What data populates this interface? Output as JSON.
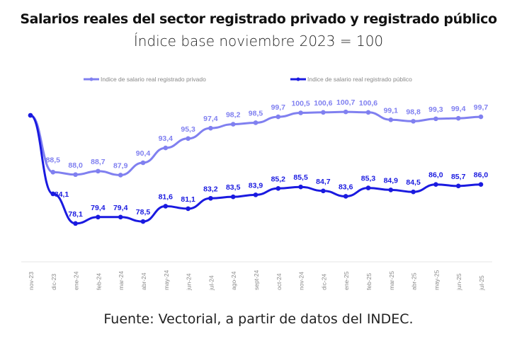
{
  "title": "Salarios reales del sector registrado privado y registrado público",
  "subtitle": "Índice base noviembre 2023 = 100",
  "source": "Fuente: Vectorial, a partir de datos del INDEC.",
  "chart_data": {
    "type": "line",
    "categories": [
      "nov-23",
      "dic-23",
      "ene-24",
      "feb-24",
      "mar-24",
      "abr-24",
      "may-24",
      "jun-24",
      "jul-24",
      "ago-24",
      "sept-24",
      "oct-24",
      "nov-24",
      "dic-24",
      "ene-25",
      "feb-25",
      "mar-25",
      "abr-25",
      "may-25",
      "jun-25",
      "jul-25"
    ],
    "series": [
      {
        "name": "Indice de salario real registrado privado",
        "color": "#8080f0",
        "values": [
          100,
          88.5,
          88.0,
          88.7,
          87.9,
          90.4,
          93.4,
          95.3,
          97.4,
          98.2,
          98.5,
          99.7,
          100.5,
          100.6,
          100.7,
          100.6,
          99.1,
          98.8,
          99.3,
          99.4,
          99.7
        ],
        "labels": [
          "",
          "88,5",
          "88,0",
          "88,7",
          "87,9",
          "90,4",
          "93,4",
          "95,3",
          "97,4",
          "98,2",
          "98,5",
          "99,7",
          "100,5",
          "100,6",
          "100,7",
          "100,6",
          "99,1",
          "98,8",
          "99,3",
          "99,4",
          "99,7"
        ]
      },
      {
        "name": "Indice de salario real registrado público",
        "color": "#1a1ae0",
        "values": [
          100,
          84.1,
          78.1,
          79.4,
          79.4,
          78.5,
          81.6,
          81.1,
          83.2,
          83.5,
          83.9,
          85.2,
          85.5,
          84.7,
          83.6,
          85.3,
          84.9,
          84.5,
          86.0,
          85.7,
          86.0
        ],
        "labels": [
          "",
          "84,1",
          "78,1",
          "79,4",
          "79,4",
          "78,5",
          "81,6",
          "81,1",
          "83,2",
          "83,5",
          "83,9",
          "85,2",
          "85,5",
          "84,7",
          "83,6",
          "85,3",
          "84,9",
          "84,5",
          "86,0",
          "85,7",
          "86,0"
        ]
      }
    ],
    "legend": "top",
    "grid": false
  }
}
